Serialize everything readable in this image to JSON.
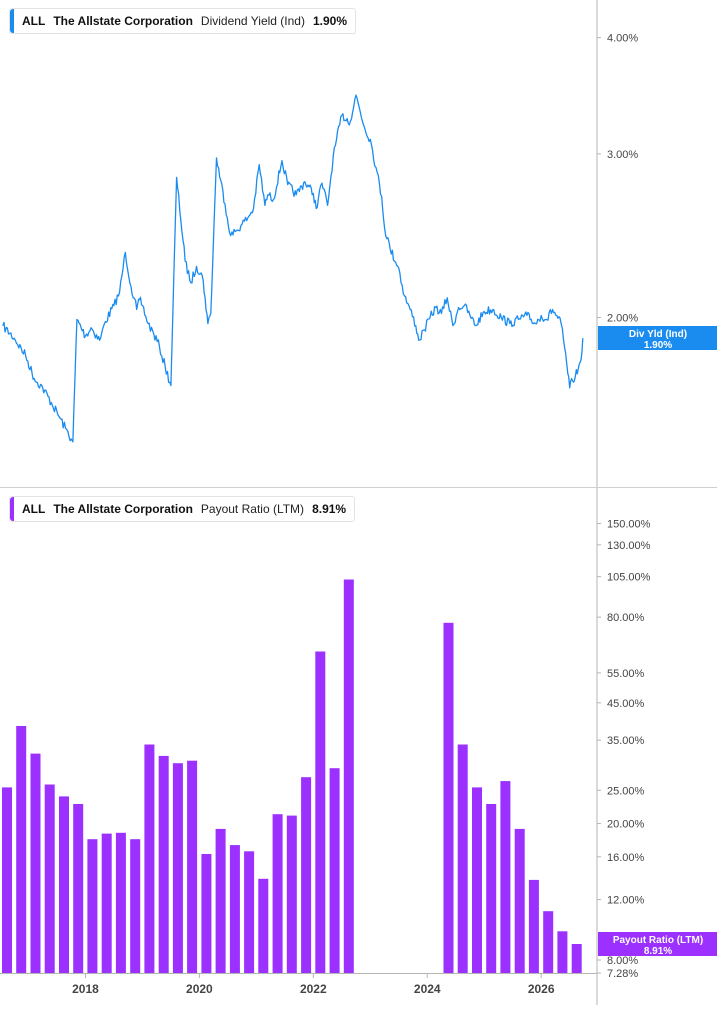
{
  "colors": {
    "yield": "#1a8cf0",
    "payout": "#9b30ff",
    "axis": "#b5b5b5",
    "label": "#444444"
  },
  "chart_data": [
    {
      "type": "line",
      "ticker": "ALL",
      "company": "The Allstate Corporation",
      "metric": "Dividend Yield (Ind)",
      "current_value": "1.90%",
      "y_scale": "log",
      "y_ticks": [
        "4.00%",
        "3.00%",
        "2.00%"
      ],
      "end_tag": {
        "line1": "Div Yld (Ind)",
        "line2": "1.90%"
      },
      "series": [
        {
          "x": [
            2016.55,
            2016.75,
            2016.95,
            2017.1,
            2017.25,
            2017.4,
            2017.55,
            2017.65,
            2017.75,
            2017.78,
            2017.85,
            2018.0,
            2018.1,
            2018.25,
            2018.35,
            2018.5,
            2018.6,
            2018.7,
            2018.8,
            2018.9,
            2018.95,
            2019.0,
            2019.1,
            2019.2,
            2019.3,
            2019.4,
            2019.5,
            2019.6,
            2019.75,
            2019.85,
            2019.95,
            2020.05,
            2020.1,
            2020.15,
            2020.2,
            2020.3,
            2020.45,
            2020.55,
            2020.65,
            2020.75,
            2020.85,
            2020.95,
            2021.05,
            2021.15,
            2021.2,
            2021.3,
            2021.45,
            2021.55,
            2021.7,
            2021.85,
            2022.0,
            2022.05,
            2022.15,
            2022.25,
            2022.35,
            2022.5,
            2022.65,
            2022.75,
            2022.9,
            2023.0,
            2023.1,
            2023.2,
            2023.25,
            2023.35,
            2023.5,
            2023.6,
            2023.7,
            2023.8,
            2023.85,
            2023.95,
            2024.05,
            2024.15,
            2024.25,
            2024.35,
            2024.45,
            2024.55,
            2024.65,
            2024.75,
            2024.85,
            2025.0,
            2025.15,
            2025.3,
            2025.45,
            2025.6,
            2025.75,
            2025.9,
            2026.0,
            2026.1,
            2026.2,
            2026.35,
            2026.45,
            2026.5,
            2026.55,
            2026.6,
            2026.65,
            2026.7,
            2026.73
          ],
          "y": [
            1.96,
            1.9,
            1.82,
            1.72,
            1.68,
            1.62,
            1.56,
            1.52,
            1.48,
            1.47,
            1.99,
            1.91,
            1.95,
            1.89,
            1.98,
            2.06,
            2.13,
            2.35,
            2.16,
            2.04,
            2.09,
            2.06,
            1.97,
            1.92,
            1.86,
            1.77,
            1.69,
            2.83,
            2.3,
            2.18,
            2.27,
            2.22,
            2.1,
            1.97,
            2.02,
            2.97,
            2.65,
            2.45,
            2.48,
            2.52,
            2.56,
            2.62,
            2.92,
            2.64,
            2.71,
            2.68,
            2.95,
            2.78,
            2.71,
            2.8,
            2.72,
            2.62,
            2.79,
            2.64,
            2.98,
            3.3,
            3.25,
            3.47,
            3.2,
            3.11,
            2.9,
            2.7,
            2.5,
            2.37,
            2.26,
            2.11,
            2.04,
            1.96,
            1.89,
            1.94,
            2.0,
            2.05,
            2.02,
            2.1,
            1.96,
            2.05,
            2.06,
            2.01,
            1.96,
            2.03,
            2.04,
            2.0,
            1.97,
            1.99,
            2.01,
            1.97,
            2.01,
            1.99,
            2.04,
            1.97,
            1.78,
            1.68,
            1.71,
            1.73,
            1.76,
            1.8,
            1.9
          ]
        }
      ]
    },
    {
      "type": "bar",
      "ticker": "ALL",
      "company": "The Allstate Corporation",
      "metric": "Payout Ratio (LTM)",
      "current_value": "8.91%",
      "y_scale": "log",
      "y_ticks": [
        "150.00%",
        "130.00%",
        "105.00%",
        "80.00%",
        "55.00%",
        "45.00%",
        "35.00%",
        "25.00%",
        "20.00%",
        "16.00%",
        "12.00%",
        "8.00%",
        "7.28%"
      ],
      "x_ticks": [
        "2018",
        "2020",
        "2022",
        "2024",
        "2026"
      ],
      "end_tag": {
        "line1": "Payout Ratio (LTM)",
        "line2": "8.91%"
      },
      "series": [
        {
          "x": [
            2016.5,
            2016.75,
            2017.0,
            2017.25,
            2017.5,
            2017.75,
            2018.0,
            2018.25,
            2018.5,
            2018.75,
            2019.0,
            2019.25,
            2019.5,
            2019.75,
            2020.0,
            2020.25,
            2020.5,
            2020.75,
            2021.0,
            2021.25,
            2021.5,
            2021.75,
            2022.0,
            2022.25,
            2022.5,
            2024.25,
            2024.5,
            2024.75,
            2025.0,
            2025.25,
            2025.5,
            2025.75,
            2026.0,
            2026.25,
            2026.5
          ],
          "values": [
            25.5,
            38.5,
            32.0,
            26.0,
            24.0,
            22.8,
            18.0,
            18.7,
            18.8,
            18.0,
            34.0,
            31.5,
            30.0,
            30.5,
            16.3,
            19.3,
            17.3,
            16.6,
            13.8,
            21.3,
            21.1,
            27.3,
            63.5,
            29.0,
            103.0,
            77.0,
            34.0,
            25.5,
            22.8,
            26.6,
            19.3,
            13.7,
            11.1,
            9.7,
            8.91
          ]
        }
      ]
    }
  ]
}
